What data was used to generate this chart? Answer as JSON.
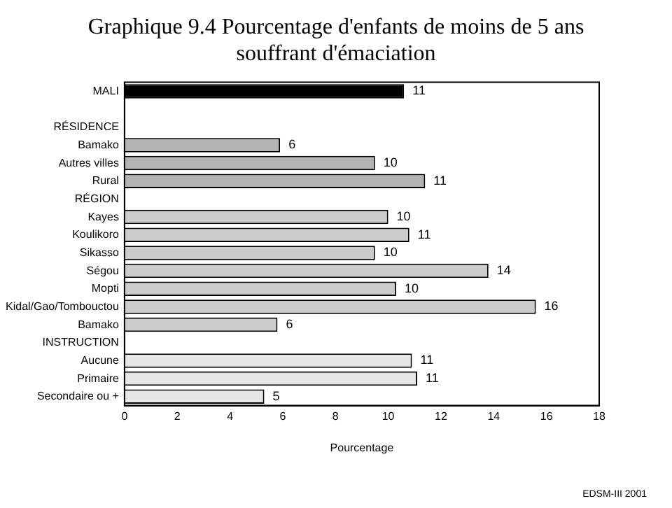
{
  "chart_data": {
    "type": "bar",
    "orientation": "horizontal",
    "title": "Graphique 9.4  Pourcentage d'enfants de moins de 5 ans souffrant d'émaciation",
    "xlabel": "Pourcentage",
    "categories": [
      "MALI",
      null,
      "RÉSIDENCE",
      "Bamako",
      "Autres villes",
      "Rural",
      "RÉGION",
      "Kayes",
      "Koulikoro",
      "Sikasso",
      "Ségou",
      "Mopti",
      "Kidal/Gao/Tombouctou",
      "Bamako",
      "INSTRUCTION",
      "Aucune",
      "Primaire",
      "Secondaire ou +"
    ],
    "values": [
      10.6,
      null,
      null,
      5.9,
      9.5,
      11.4,
      null,
      10.0,
      10.8,
      9.5,
      13.8,
      10.3,
      15.6,
      5.8,
      null,
      10.9,
      11.1,
      5.3
    ],
    "value_labels": [
      "11",
      null,
      null,
      "6",
      "10",
      "11",
      null,
      "10",
      "11",
      "10",
      "14",
      "10",
      "16",
      "6",
      null,
      "11",
      "11",
      "5"
    ],
    "colors": [
      "#000000",
      null,
      null,
      "#b4b4b4",
      "#b4b4b4",
      "#b4b4b4",
      null,
      "#cccccc",
      "#cccccc",
      "#cccccc",
      "#cccccc",
      "#cccccc",
      "#cccccc",
      "#cccccc",
      null,
      "#e6e6e6",
      "#e6e6e6",
      "#e6e6e6"
    ],
    "xlim": [
      0,
      18
    ],
    "xticks": [
      0,
      2,
      4,
      6,
      8,
      10,
      12,
      14,
      16,
      18
    ],
    "grid": false,
    "legend": false,
    "annotations": [
      "EDSM-III 2001"
    ]
  }
}
